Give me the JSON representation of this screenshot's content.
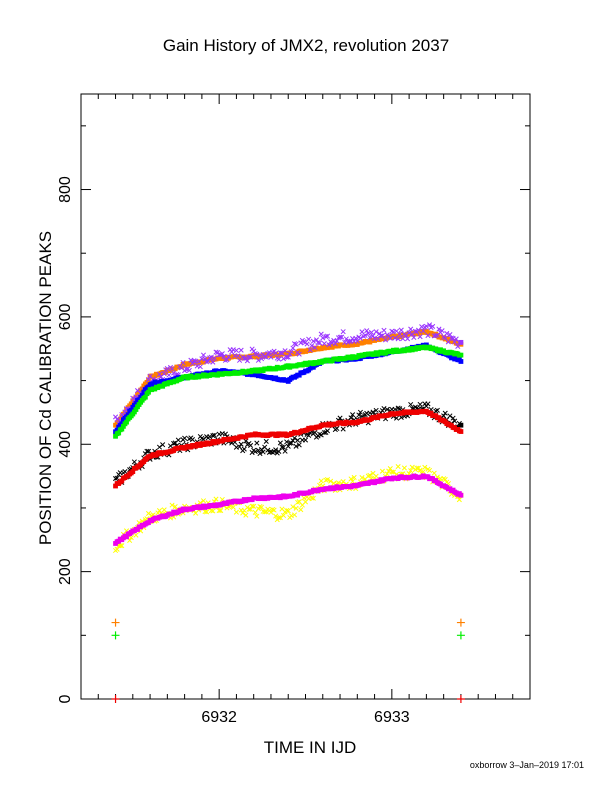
{
  "chart_data": {
    "type": "scatter",
    "title": "Gain History of JMX2, revolution 2037",
    "xlabel": "TIME IN IJD",
    "ylabel": "POSITION OF Cd CALIBRATION PEAKS",
    "xlim": [
      6931.2,
      6933.8
    ],
    "ylim": [
      0,
      950
    ],
    "xticks": [
      6932,
      6933
    ],
    "yticks": [
      0,
      200,
      400,
      600,
      800
    ],
    "grid": false,
    "colors": {
      "orange": "#ff8000",
      "purple": "#9933ff",
      "blue": "#0000ff",
      "green": "#00ee00",
      "black": "#000000",
      "red": "#ee0000",
      "yellow": "#ffff00",
      "magenta": "#ee00ee"
    },
    "series": [
      {
        "color": "#ff8000",
        "marker": "square",
        "x": [
          6931.4,
          6931.6,
          6931.8,
          6932.0,
          6932.2,
          6932.4,
          6932.6,
          6932.8,
          6933.0,
          6933.2,
          6933.4
        ],
        "y": [
          430,
          505,
          525,
          535,
          538,
          542,
          552,
          558,
          568,
          577,
          557
        ]
      },
      {
        "color": "#9933ff",
        "marker": "cross",
        "x": [
          6931.4,
          6931.6,
          6931.8,
          6932.0,
          6932.2,
          6932.4,
          6932.6,
          6932.8,
          6933.0,
          6933.2,
          6933.4
        ],
        "y": [
          435,
          500,
          520,
          540,
          540,
          545,
          565,
          570,
          572,
          580,
          560
        ]
      },
      {
        "color": "#0000ff",
        "marker": "square",
        "x": [
          6931.4,
          6931.6,
          6931.8,
          6932.0,
          6932.2,
          6932.4,
          6932.6,
          6932.8,
          6933.0,
          6933.2,
          6933.4
        ],
        "y": [
          420,
          495,
          505,
          515,
          510,
          500,
          530,
          535,
          545,
          555,
          530
        ]
      },
      {
        "color": "#00ee00",
        "marker": "square",
        "x": [
          6931.4,
          6931.6,
          6931.8,
          6932.0,
          6932.2,
          6932.4,
          6932.6,
          6932.8,
          6933.0,
          6933.2,
          6933.4
        ],
        "y": [
          412,
          485,
          505,
          510,
          515,
          522,
          530,
          538,
          546,
          552,
          540
        ]
      },
      {
        "color": "#000000",
        "marker": "cross",
        "x": [
          6931.4,
          6931.6,
          6931.8,
          6932.0,
          6932.2,
          6932.4,
          6932.6,
          6932.8,
          6933.0,
          6933.2,
          6933.4
        ],
        "y": [
          340,
          385,
          400,
          410,
          395,
          395,
          425,
          440,
          450,
          455,
          430
        ]
      },
      {
        "color": "#ee0000",
        "marker": "square",
        "x": [
          6931.4,
          6931.6,
          6931.8,
          6932.0,
          6932.2,
          6932.4,
          6932.6,
          6932.8,
          6933.0,
          6933.2,
          6933.4
        ],
        "y": [
          335,
          382,
          395,
          405,
          415,
          415,
          430,
          435,
          448,
          452,
          420
        ]
      },
      {
        "color": "#ffff00",
        "marker": "cross",
        "x": [
          6931.4,
          6931.6,
          6931.8,
          6932.0,
          6932.2,
          6932.4,
          6932.6,
          6932.8,
          6933.0,
          6933.2,
          6933.4
        ],
        "y": [
          240,
          285,
          300,
          305,
          295,
          290,
          335,
          340,
          355,
          355,
          320
        ]
      },
      {
        "color": "#ee00ee",
        "marker": "square",
        "x": [
          6931.4,
          6931.6,
          6931.8,
          6932.0,
          6932.2,
          6932.4,
          6932.6,
          6932.8,
          6933.0,
          6933.2,
          6933.4
        ],
        "y": [
          245,
          280,
          298,
          305,
          315,
          318,
          330,
          335,
          347,
          350,
          320
        ]
      }
    ],
    "plus_markers": [
      {
        "color": "#ff8000",
        "x": 6931.4,
        "y": 120
      },
      {
        "color": "#ff8000",
        "x": 6933.4,
        "y": 120
      },
      {
        "color": "#00ee00",
        "x": 6931.4,
        "y": 100
      },
      {
        "color": "#00ee00",
        "x": 6933.4,
        "y": 100
      },
      {
        "color": "#ee0000",
        "x": 6931.4,
        "y": 0
      },
      {
        "color": "#ee0000",
        "x": 6933.4,
        "y": 0
      }
    ]
  },
  "footer": "oxborrow  3–Jan–2019 17:01"
}
